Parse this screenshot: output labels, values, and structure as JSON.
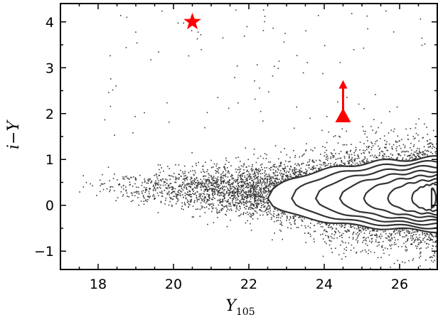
{
  "chart_data": {
    "type": "scatter",
    "xlabel": "Y",
    "xlabel_subscript": "105",
    "ylabel": "i−Y",
    "xlim": [
      17.0,
      27.0
    ],
    "ylim": [
      -1.4,
      4.4
    ],
    "xticks": [
      18,
      20,
      22,
      24,
      26
    ],
    "yticks": [
      -1,
      0,
      1,
      2,
      3,
      4
    ],
    "xtick_labels": [
      "18",
      "20",
      "22",
      "24",
      "26"
    ],
    "ytick_labels": [
      "−1",
      "0",
      "1",
      "2",
      "3",
      "4"
    ],
    "minor_x_step": 0.5,
    "minor_y_step": 0.5,
    "grid": false,
    "point_color": "#3a3a3a",
    "contour_color": "#333333",
    "marker_color": "#ff0000",
    "series": [
      {
        "kind": "scatter-cloud",
        "approx_points": 9000,
        "description_of_trend": "fan-shaped cloud widening toward faint magnitudes"
      },
      {
        "kind": "contours",
        "levels": 8,
        "centre": [
          26.4,
          0.15
        ]
      },
      {
        "kind": "star-marker",
        "x": 20.5,
        "y": 4.0
      },
      {
        "kind": "triangle-marker-with-lower-limit-arrow",
        "x": 24.5,
        "y": 1.95,
        "arrow_to_y": 2.7
      }
    ]
  }
}
